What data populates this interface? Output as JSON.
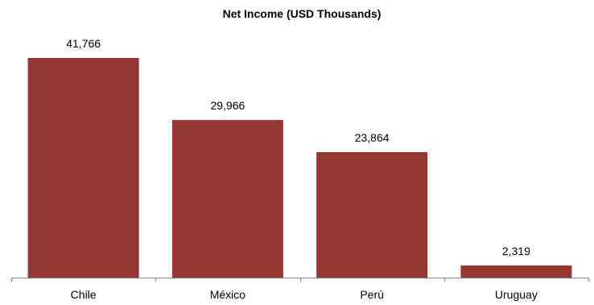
{
  "chart_data": {
    "type": "bar",
    "title": "Net Income (USD Thousands)",
    "xlabel": "",
    "ylabel": "",
    "categories": [
      "Chile",
      "México",
      "Perú",
      "Uruguay"
    ],
    "values": [
      41766,
      29966,
      23864,
      2319
    ],
    "data_labels": [
      "41,766",
      "29,966",
      "23,864",
      "2,319"
    ],
    "ylim": [
      0,
      47000
    ],
    "grid": false,
    "legend": "none",
    "bar_color": "#953735",
    "axis_color": "#868686"
  }
}
